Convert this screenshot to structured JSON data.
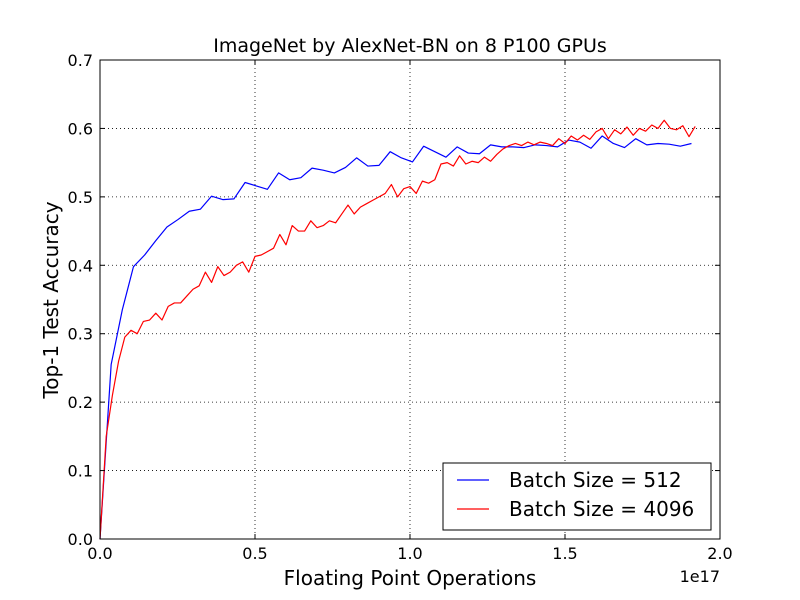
{
  "chart_data": {
    "type": "line",
    "title": "ImageNet by AlexNet-BN on 8 P100 GPUs",
    "xlabel": "Floating Point Operations",
    "ylabel": "Top-1 Test Accuracy",
    "x_offset_label": "1e17",
    "xlim": [
      0.0,
      2.0
    ],
    "ylim": [
      0.0,
      0.7
    ],
    "x_ticks": [
      0.0,
      0.5,
      1.0,
      1.5,
      2.0
    ],
    "x_tick_labels": [
      "0.0",
      "0.5",
      "1.0",
      "1.5",
      "2.0"
    ],
    "y_ticks": [
      0.0,
      0.1,
      0.2,
      0.3,
      0.4,
      0.5,
      0.6,
      0.7
    ],
    "y_tick_labels": [
      "0.0",
      "0.1",
      "0.2",
      "0.3",
      "0.4",
      "0.5",
      "0.6",
      "0.7"
    ],
    "grid": true,
    "legend_position": "lower-right",
    "series": [
      {
        "name": "Batch Size = 512",
        "color": "#0000ff",
        "x": [
          0.0,
          0.036,
          0.072,
          0.108,
          0.144,
          0.18,
          0.216,
          0.252,
          0.288,
          0.324,
          0.36,
          0.396,
          0.432,
          0.468,
          0.504,
          0.54,
          0.576,
          0.612,
          0.648,
          0.684,
          0.72,
          0.756,
          0.792,
          0.828,
          0.864,
          0.9,
          0.936,
          0.972,
          1.008,
          1.044,
          1.08,
          1.116,
          1.152,
          1.188,
          1.224,
          1.26,
          1.296,
          1.332,
          1.368,
          1.404,
          1.44,
          1.476,
          1.512,
          1.548,
          1.584,
          1.62,
          1.656,
          1.692,
          1.728,
          1.764,
          1.8,
          1.836,
          1.872,
          1.908
        ],
        "y": [
          0.0,
          0.255,
          0.335,
          0.398,
          0.415,
          0.436,
          0.456,
          0.467,
          0.479,
          0.482,
          0.501,
          0.496,
          0.497,
          0.521,
          0.516,
          0.511,
          0.535,
          0.525,
          0.528,
          0.542,
          0.539,
          0.535,
          0.543,
          0.557,
          0.545,
          0.546,
          0.566,
          0.557,
          0.551,
          0.574,
          0.566,
          0.558,
          0.573,
          0.564,
          0.563,
          0.576,
          0.573,
          0.573,
          0.572,
          0.576,
          0.575,
          0.573,
          0.583,
          0.58,
          0.571,
          0.589,
          0.578,
          0.572,
          0.585,
          0.576,
          0.578,
          0.577,
          0.574,
          0.578
        ]
      },
      {
        "name": "Batch Size = 4096",
        "color": "#ff0000",
        "x": [
          0.0,
          0.02,
          0.04,
          0.06,
          0.08,
          0.1,
          0.12,
          0.14,
          0.16,
          0.18,
          0.2,
          0.22,
          0.24,
          0.26,
          0.28,
          0.3,
          0.32,
          0.34,
          0.36,
          0.38,
          0.4,
          0.42,
          0.44,
          0.46,
          0.48,
          0.5,
          0.52,
          0.54,
          0.56,
          0.58,
          0.6,
          0.62,
          0.64,
          0.66,
          0.68,
          0.7,
          0.72,
          0.74,
          0.76,
          0.78,
          0.8,
          0.82,
          0.84,
          0.86,
          0.88,
          0.9,
          0.92,
          0.94,
          0.96,
          0.98,
          1.0,
          1.02,
          1.04,
          1.06,
          1.08,
          1.1,
          1.12,
          1.14,
          1.16,
          1.18,
          1.2,
          1.22,
          1.24,
          1.26,
          1.28,
          1.3,
          1.32,
          1.34,
          1.36,
          1.38,
          1.4,
          1.42,
          1.44,
          1.46,
          1.48,
          1.5,
          1.52,
          1.54,
          1.56,
          1.58,
          1.6,
          1.62,
          1.64,
          1.66,
          1.68,
          1.7,
          1.72,
          1.74,
          1.76,
          1.78,
          1.8,
          1.82,
          1.84,
          1.86,
          1.88,
          1.9,
          1.92
        ],
        "y": [
          0.0,
          0.15,
          0.21,
          0.26,
          0.295,
          0.305,
          0.3,
          0.318,
          0.32,
          0.33,
          0.32,
          0.34,
          0.345,
          0.345,
          0.355,
          0.365,
          0.37,
          0.39,
          0.375,
          0.398,
          0.385,
          0.39,
          0.4,
          0.405,
          0.39,
          0.413,
          0.415,
          0.42,
          0.425,
          0.445,
          0.43,
          0.458,
          0.45,
          0.45,
          0.465,
          0.455,
          0.458,
          0.465,
          0.462,
          0.475,
          0.488,
          0.475,
          0.485,
          0.49,
          0.495,
          0.5,
          0.505,
          0.518,
          0.5,
          0.512,
          0.515,
          0.505,
          0.523,
          0.52,
          0.525,
          0.548,
          0.55,
          0.545,
          0.56,
          0.548,
          0.552,
          0.55,
          0.558,
          0.552,
          0.562,
          0.57,
          0.575,
          0.578,
          0.575,
          0.58,
          0.576,
          0.58,
          0.578,
          0.575,
          0.585,
          0.578,
          0.589,
          0.583,
          0.59,
          0.584,
          0.595,
          0.6,
          0.585,
          0.598,
          0.592,
          0.602,
          0.59,
          0.6,
          0.596,
          0.605,
          0.6,
          0.612,
          0.6,
          0.598,
          0.604,
          0.588,
          0.603
        ]
      }
    ]
  }
}
